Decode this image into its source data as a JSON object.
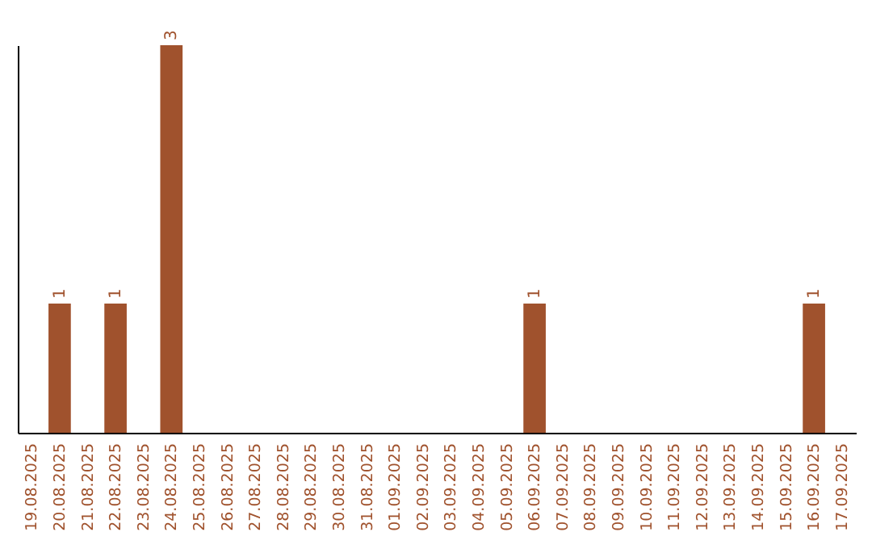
{
  "chart_data": {
    "type": "bar",
    "categories": [
      "19.08.2025",
      "20.08.2025",
      "21.08.2025",
      "22.08.2025",
      "23.08.2025",
      "24.08.2025",
      "25.08.2025",
      "26.08.2025",
      "27.08.2025",
      "28.08.2025",
      "29.08.2025",
      "30.08.2025",
      "31.08.2025",
      "01.09.2025",
      "02.09.2025",
      "03.09.2025",
      "04.09.2025",
      "05.09.2025",
      "06.09.2025",
      "07.09.2025",
      "08.09.2025",
      "09.09.2025",
      "10.09.2025",
      "11.09.2025",
      "12.09.2025",
      "13.09.2025",
      "14.09.2025",
      "15.09.2025",
      "16.09.2025",
      "17.09.2025"
    ],
    "values": [
      0,
      1,
      0,
      1,
      0,
      3,
      0,
      0,
      0,
      0,
      0,
      0,
      0,
      0,
      0,
      0,
      0,
      0,
      1,
      0,
      0,
      0,
      0,
      0,
      0,
      0,
      0,
      0,
      1,
      0
    ],
    "value_labels": [
      null,
      "1",
      null,
      "1",
      null,
      "3",
      null,
      null,
      null,
      null,
      null,
      null,
      null,
      null,
      null,
      null,
      null,
      null,
      "1",
      null,
      null,
      null,
      null,
      null,
      null,
      null,
      null,
      null,
      "1",
      null
    ],
    "color": "#a0522d",
    "tick_labels": "x"
  }
}
